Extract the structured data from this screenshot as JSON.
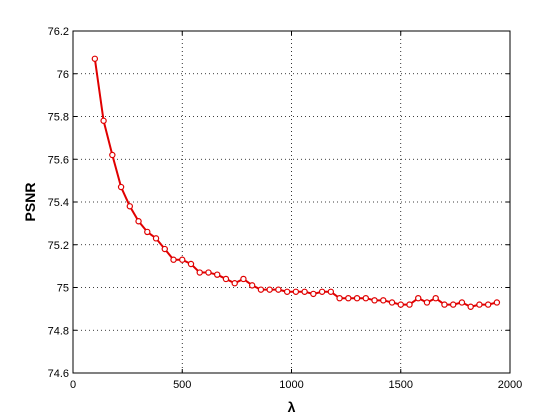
{
  "chart_data": {
    "type": "line",
    "title": "",
    "xlabel": "λ",
    "ylabel": "PSNR",
    "xlim": [
      0,
      2000
    ],
    "ylim": [
      74.6,
      76.2
    ],
    "xticks": [
      0,
      500,
      1000,
      1500,
      2000
    ],
    "xtick_labels": [
      "0",
      "500",
      "1000",
      "1500",
      "2000"
    ],
    "yticks": [
      74.6,
      74.8,
      75,
      75.2,
      75.4,
      75.6,
      75.8,
      76,
      76.2
    ],
    "ytick_labels": [
      "74.6",
      "74.8",
      "75",
      "75.2",
      "75.4",
      "75.6",
      "75.8",
      "76",
      "76.2"
    ],
    "grid": true,
    "grid_style": "dotted",
    "legend": "none",
    "line_color": "#e00000",
    "marker": "circle-open",
    "series": [
      {
        "x": [
          100,
          140,
          180,
          220,
          260,
          300,
          340,
          380,
          420,
          460,
          500,
          540,
          580,
          620,
          660,
          700,
          740,
          780,
          820,
          860,
          900,
          940,
          980,
          1020,
          1060,
          1100,
          1140,
          1180,
          1220,
          1260,
          1300,
          1340,
          1380,
          1420,
          1460,
          1500,
          1540,
          1580,
          1620,
          1660,
          1700,
          1740,
          1780,
          1820,
          1860,
          1900,
          1940
        ],
        "y": [
          76.07,
          75.78,
          75.62,
          75.47,
          75.38,
          75.31,
          75.26,
          75.23,
          75.18,
          75.13,
          75.13,
          75.11,
          75.07,
          75.07,
          75.06,
          75.04,
          75.02,
          75.04,
          75.01,
          74.99,
          74.99,
          74.99,
          74.98,
          74.98,
          74.98,
          74.97,
          74.98,
          74.98,
          74.95,
          74.95,
          74.95,
          74.95,
          74.94,
          74.94,
          74.93,
          74.92,
          74.92,
          74.95,
          74.93,
          74.95,
          74.92,
          74.92,
          74.93,
          74.91,
          74.92,
          74.92,
          74.93
        ]
      }
    ]
  }
}
